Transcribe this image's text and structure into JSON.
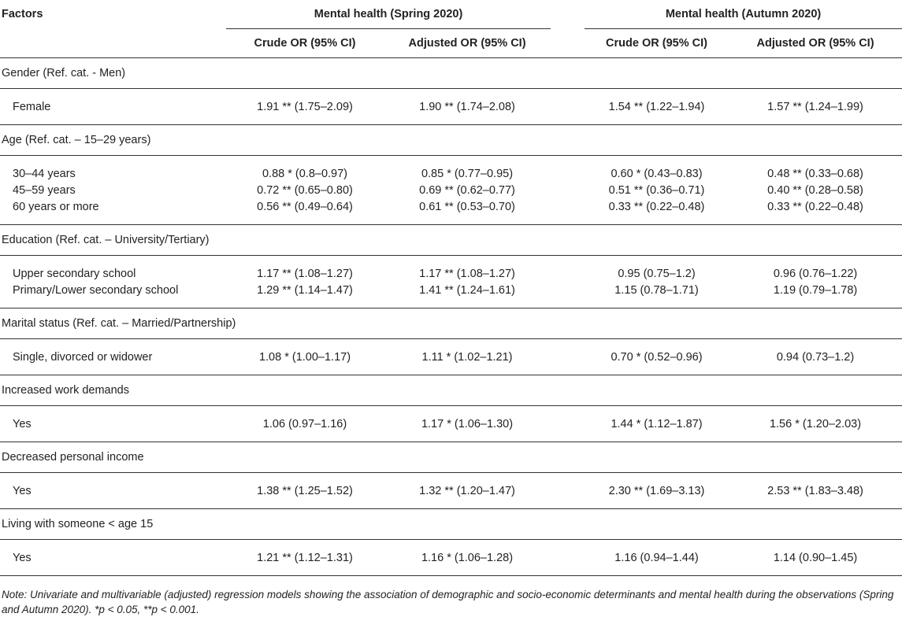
{
  "header": {
    "factors_label": "Factors",
    "group_spring": "Mental health (Spring 2020)",
    "group_autumn": "Mental health (Autumn 2020)",
    "sub_crude": "Crude OR (95% CI)",
    "sub_adjusted": "Adjusted OR (95% CI)"
  },
  "sections": [
    {
      "title": "Gender (Ref. cat. - Men)",
      "rows": [
        {
          "label": "Female",
          "spring_crude": "1.91 ** (1.75–2.09)",
          "spring_adj": "1.90 ** (1.74–2.08)",
          "autumn_crude": "1.54 ** (1.22–1.94)",
          "autumn_adj": "1.57 ** (1.24–1.99)"
        }
      ]
    },
    {
      "title": "Age (Ref. cat. – 15–29 years)",
      "rows": [
        {
          "label": "30–44 years",
          "spring_crude": "0.88 * (0.8–0.97)",
          "spring_adj": "0.85 * (0.77–0.95)",
          "autumn_crude": "0.60 * (0.43–0.83)",
          "autumn_adj": "0.48 ** (0.33–0.68)"
        },
        {
          "label": "45–59 years",
          "spring_crude": "0.72 ** (0.65–0.80)",
          "spring_adj": "0.69 ** (0.62–0.77)",
          "autumn_crude": "0.51 ** (0.36–0.71)",
          "autumn_adj": "0.40 ** (0.28–0.58)"
        },
        {
          "label": "60 years or more",
          "spring_crude": "0.56 ** (0.49–0.64)",
          "spring_adj": "0.61 ** (0.53–0.70)",
          "autumn_crude": "0.33 ** (0.22–0.48)",
          "autumn_adj": "0.33 ** (0.22–0.48)"
        }
      ]
    },
    {
      "title": "Education (Ref. cat. – University/Tertiary)",
      "rows": [
        {
          "label": "Upper secondary school",
          "spring_crude": "1.17 ** (1.08–1.27)",
          "spring_adj": "1.17 ** (1.08–1.27)",
          "autumn_crude": "0.95 (0.75–1.2)",
          "autumn_adj": "0.96 (0.76–1.22)"
        },
        {
          "label": "Primary/Lower secondary school",
          "spring_crude": "1.29 ** (1.14–1.47)",
          "spring_adj": "1.41 ** (1.24–1.61)",
          "autumn_crude": "1.15 (0.78–1.71)",
          "autumn_adj": "1.19 (0.79–1.78)"
        }
      ]
    },
    {
      "title": "Marital status (Ref. cat. – Married/Partnership)",
      "rows": [
        {
          "label": "Single, divorced or widower",
          "spring_crude": "1.08 * (1.00–1.17)",
          "spring_adj": "1.11 * (1.02–1.21)",
          "autumn_crude": "0.70 * (0.52–0.96)",
          "autumn_adj": "0.94 (0.73–1.2)"
        }
      ]
    },
    {
      "title": "Increased work demands",
      "rows": [
        {
          "label": "Yes",
          "spring_crude": "1.06 (0.97–1.16)",
          "spring_adj": "1.17 * (1.06–1.30)",
          "autumn_crude": "1.44 * (1.12–1.87)",
          "autumn_adj": "1.56 * (1.20–2.03)"
        }
      ]
    },
    {
      "title": "Decreased personal income",
      "rows": [
        {
          "label": "Yes",
          "spring_crude": "1.38 ** (1.25–1.52)",
          "spring_adj": "1.32 ** (1.20–1.47)",
          "autumn_crude": "2.30 ** (1.69–3.13)",
          "autumn_adj": "2.53 ** (1.83–3.48)"
        }
      ]
    },
    {
      "title": "Living with someone < age 15",
      "rows": [
        {
          "label": "Yes",
          "spring_crude": "1.21 ** (1.12–1.31)",
          "spring_adj": "1.16 * (1.06–1.28)",
          "autumn_crude": "1.16 (0.94–1.44)",
          "autumn_adj": "1.14 (0.90–1.45)"
        }
      ]
    }
  ],
  "note": "Note: Univariate and multivariable (adjusted) regression models showing the association of demographic and socio-economic determinants and mental health during the observations (Spring and Autumn 2020). *p < 0.05, **p < 0.001."
}
